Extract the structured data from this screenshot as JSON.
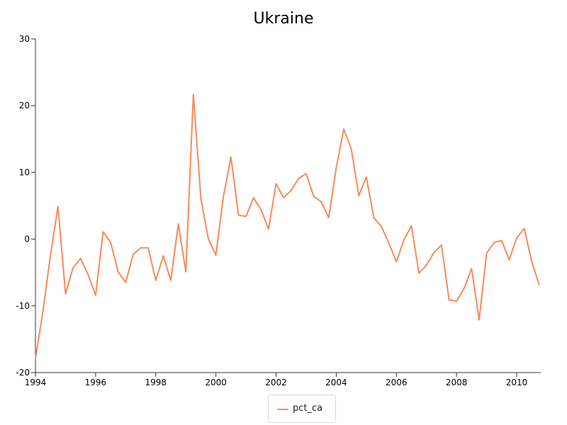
{
  "colors": {
    "series": "#f58b5b",
    "axis": "#333333"
  },
  "chart_data": {
    "type": "line",
    "title": "Ukraine",
    "xlabel": "",
    "ylabel": "",
    "xlim": [
      1994,
      2010.8
    ],
    "ylim": [
      -20,
      30
    ],
    "x_ticks": [
      "1994",
      "1996",
      "1998",
      "2000",
      "2002",
      "2004",
      "2006",
      "2008",
      "2010"
    ],
    "y_ticks": [
      "-20",
      "-10",
      "0",
      "10",
      "20",
      "30"
    ],
    "grid": false,
    "legend": "bottom-center",
    "x": [
      1994.0,
      1994.25,
      1994.5,
      1994.75,
      1995.0,
      1995.25,
      1995.5,
      1995.75,
      1996.0,
      1996.25,
      1996.5,
      1996.75,
      1997.0,
      1997.25,
      1997.5,
      1997.75,
      1998.0,
      1998.25,
      1998.5,
      1998.75,
      1999.0,
      1999.25,
      1999.5,
      1999.75,
      2000.0,
      2000.25,
      2000.5,
      2000.75,
      2001.0,
      2001.25,
      2001.5,
      2001.75,
      2002.0,
      2002.25,
      2002.5,
      2002.75,
      2003.0,
      2003.25,
      2003.5,
      2003.75,
      2004.0,
      2004.25,
      2004.5,
      2004.75,
      2005.0,
      2005.25,
      2005.5,
      2005.75,
      2006.0,
      2006.25,
      2006.5,
      2006.75,
      2007.0,
      2007.25,
      2007.5,
      2007.75,
      2008.0,
      2008.25,
      2008.5,
      2008.75,
      2009.0,
      2009.25,
      2009.5,
      2009.75,
      2010.0,
      2010.25,
      2010.5,
      2010.75
    ],
    "series": [
      {
        "name": "pct_ca",
        "values": [
          -17.9,
          -10.8,
          -2.4,
          4.9,
          -8.2,
          -4.3,
          -2.9,
          -5.3,
          -8.4,
          1.1,
          -0.5,
          -4.9,
          -6.5,
          -2.3,
          -1.3,
          -1.3,
          -6.2,
          -2.5,
          -6.2,
          2.3,
          -4.9,
          21.7,
          6.1,
          0.0,
          -2.4,
          6.4,
          12.3,
          3.6,
          3.4,
          6.2,
          4.4,
          1.5,
          8.3,
          6.2,
          7.3,
          9.1,
          9.8,
          6.4,
          5.6,
          3.2,
          10.7,
          16.5,
          13.5,
          6.5,
          9.3,
          3.2,
          1.9,
          -0.6,
          -3.4,
          -0.1,
          2.0,
          -5.1,
          -3.9,
          -2.0,
          -0.9,
          -9.1,
          -9.3,
          -7.4,
          -4.4,
          -12.1,
          -2.1,
          -0.5,
          -0.2,
          -3.1,
          0.2,
          1.6,
          -3.4,
          -6.9
        ]
      }
    ]
  }
}
